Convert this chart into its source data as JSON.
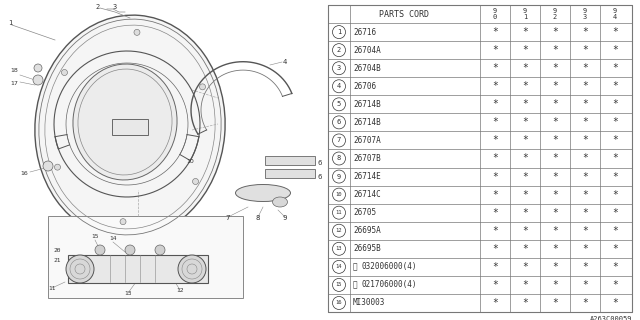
{
  "bg_color": "#ffffff",
  "parts": [
    [
      "1",
      "26716"
    ],
    [
      "2",
      "26704A"
    ],
    [
      "3",
      "26704B"
    ],
    [
      "4",
      "26706"
    ],
    [
      "5",
      "26714B"
    ],
    [
      "6",
      "26714B"
    ],
    [
      "7",
      "26707A"
    ],
    [
      "8",
      "26707B"
    ],
    [
      "9",
      "26714E"
    ],
    [
      "10",
      "26714C"
    ],
    [
      "11",
      "26705"
    ],
    [
      "12",
      "26695A"
    ],
    [
      "13",
      "26695B"
    ],
    [
      "14",
      "(W)032006000(4)"
    ],
    [
      "15",
      "(N)021706000(4)"
    ],
    [
      "16",
      "MI30003"
    ]
  ],
  "years": [
    "9\n0",
    "9\n1",
    "9\n2",
    "9\n3",
    "9\n4"
  ],
  "diagram_label": "A263C00059",
  "line_color": "#777777",
  "text_color": "#333333"
}
